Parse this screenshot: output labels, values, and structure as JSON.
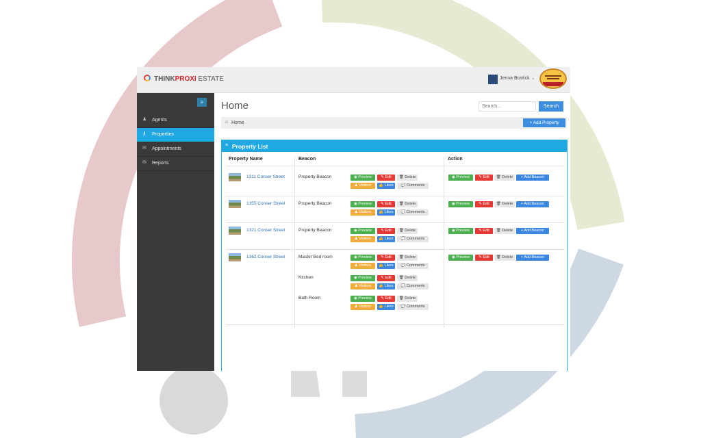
{
  "header": {
    "brand_part1": "THINK",
    "brand_part2": "PROXI",
    "brand_part3": " ESTATE",
    "user_name": "Jenna Bostick",
    "user_caret": "⌄",
    "partner_logo": "Magnolia Homes"
  },
  "sidebar": {
    "toggle_icon": "≡",
    "items": [
      {
        "label": "Agents",
        "icon": "user-icon",
        "glyph": "♟",
        "active": false
      },
      {
        "label": "Properties",
        "icon": "key-icon",
        "glyph": "⚷",
        "active": true
      },
      {
        "label": "Appointments",
        "icon": "envelope-icon",
        "glyph": "✉",
        "active": false
      },
      {
        "label": "Reports",
        "icon": "envelope-icon",
        "glyph": "✉",
        "active": false
      }
    ]
  },
  "main": {
    "title": "Home",
    "search_placeholder": "Search...",
    "search_button": "Search",
    "breadcrumb_icon": "⌂",
    "breadcrumb": "Home",
    "add_property_button": "+ Add Property"
  },
  "panel": {
    "icon": "≡",
    "title": "Property List",
    "columns": [
      "Property Name",
      "Beacon",
      "Action"
    ]
  },
  "buttons": {
    "preview": "◉ Preview",
    "edit": "✎ Edit",
    "delete": "🗑 Delete",
    "visitors": "♟ Visitors",
    "likes": "👍 Likes",
    "comments": "💬 Comments",
    "add_beacon": "+ Add Beacon"
  },
  "rows": [
    {
      "property": "1311 Conser Street",
      "beacons": [
        "Property Beacon"
      ]
    },
    {
      "property": "1355 Conser Street",
      "beacons": [
        "Property Beacon"
      ]
    },
    {
      "property": "1321 Conser Street",
      "beacons": [
        "Property Beacon"
      ]
    },
    {
      "property": "1362 Conser Street",
      "beacons": [
        "Master Bed room",
        "Kitchen",
        "Bath Room"
      ]
    }
  ],
  "colors": {
    "accent": "#20a8e2",
    "sidebar": "#3a3a3a",
    "preview_green": "#4caf50",
    "edit_red": "#e53935",
    "visitors_orange": "#f0ad3c",
    "likes_blue": "#3a86e0"
  }
}
